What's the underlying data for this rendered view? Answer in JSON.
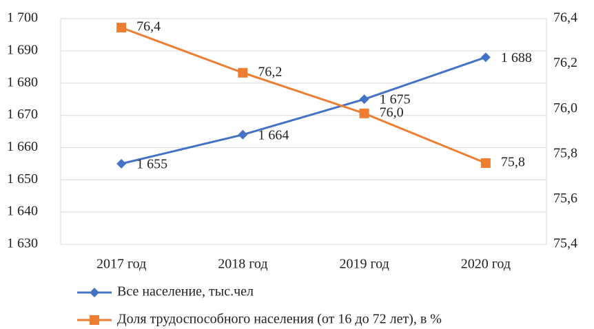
{
  "chart_data": {
    "type": "line",
    "categories": [
      "2017 год",
      "2018 год",
      "2019 год",
      "2020 год"
    ],
    "series": [
      {
        "name": "Все население, тыс.чел",
        "color": "#4472c4",
        "marker": "diamond",
        "axis": "y",
        "values": [
          1655,
          1664,
          1675,
          1688
        ],
        "value_labels": [
          "1 655",
          "1 664",
          "1 675",
          "1 688"
        ]
      },
      {
        "name": "Доля трудоспособного населения (от 16 до 72 лет), в %",
        "color": "#ed7d31",
        "marker": "square",
        "axis": "y2",
        "values": [
          76.36,
          76.16,
          75.98,
          75.76
        ],
        "value_labels": [
          "76,4",
          "76,2",
          "76,0",
          "75,8"
        ]
      }
    ],
    "ylim": [
      1630,
      1700
    ],
    "yticks": [
      {
        "value": 1630,
        "label": "1 630"
      },
      {
        "value": 1640,
        "label": "1 640"
      },
      {
        "value": 1650,
        "label": "1 650"
      },
      {
        "value": 1660,
        "label": "1 660"
      },
      {
        "value": 1670,
        "label": "1 670"
      },
      {
        "value": 1680,
        "label": "1 680"
      },
      {
        "value": 1690,
        "label": "1 690"
      },
      {
        "value": 1700,
        "label": "1 700"
      }
    ],
    "y2lim": [
      75.4,
      76.4
    ],
    "y2ticks": [
      {
        "value": 75.4,
        "label": "75,4"
      },
      {
        "value": 75.6,
        "label": "75,6"
      },
      {
        "value": 75.8,
        "label": "75,8"
      },
      {
        "value": 76.0,
        "label": "76,0"
      },
      {
        "value": 76.2,
        "label": "76,2"
      },
      {
        "value": 76.4,
        "label": "76,4"
      }
    ],
    "grid": true,
    "legend": "bottom"
  }
}
